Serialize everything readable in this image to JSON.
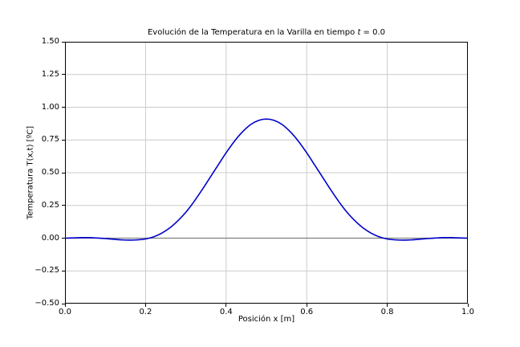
{
  "figure": {
    "title_prefix": "Evolución de la Temperatura en la Varilla en tiempo ",
    "title_var": "t",
    "title_suffix": " = 0.0",
    "xlabel": "Posición x [m]",
    "ylabel": "Temperatura T(x,t) [ºC]"
  },
  "chart_data": {
    "type": "line",
    "title": "Evolución de la Temperatura en la Varilla en tiempo t = 0.0",
    "xlabel": "Posición x [m]",
    "ylabel": "Temperatura T(x,t) [ºC]",
    "xlim": [
      0.0,
      1.0
    ],
    "ylim": [
      -0.5,
      1.5
    ],
    "grid": true,
    "legend": "none",
    "xticks": [
      {
        "value": 0.0,
        "label": "0.0"
      },
      {
        "value": 0.2,
        "label": "0.2"
      },
      {
        "value": 0.4,
        "label": "0.4"
      },
      {
        "value": 0.6,
        "label": "0.6"
      },
      {
        "value": 0.8,
        "label": "0.8"
      },
      {
        "value": 1.0,
        "label": "1.0"
      }
    ],
    "yticks": [
      {
        "value": 1.5,
        "label": "1.50"
      },
      {
        "value": 1.25,
        "label": "1.25"
      },
      {
        "value": 1.0,
        "label": "1.00"
      },
      {
        "value": 0.75,
        "label": "0.75"
      },
      {
        "value": 0.5,
        "label": "0.50"
      },
      {
        "value": 0.25,
        "label": "0.25"
      },
      {
        "value": 0.0,
        "label": "0.00"
      },
      {
        "value": -0.25,
        "label": "−0.25"
      },
      {
        "value": -0.5,
        "label": "−0.50"
      }
    ],
    "style": {
      "grid_color": "#cccccc",
      "spine_color": "#000000",
      "background": "#ffffff",
      "tick_color": "#000000"
    },
    "series": [
      {
        "name": "zero-reference-line",
        "color": "#808080",
        "width": 1.3,
        "smooth": false,
        "x": [
          0.0,
          1.0
        ],
        "y": [
          0.0,
          0.0
        ]
      },
      {
        "name": "temperature-profile",
        "color": "#0000cc",
        "width": 1.6,
        "smooth": true,
        "x": [
          0.0,
          0.02,
          0.04,
          0.06,
          0.08,
          0.1,
          0.12,
          0.14,
          0.16,
          0.18,
          0.2,
          0.22,
          0.24,
          0.26,
          0.28,
          0.3,
          0.32,
          0.34,
          0.36,
          0.38,
          0.4,
          0.42,
          0.44,
          0.46,
          0.48,
          0.5,
          0.52,
          0.54,
          0.56,
          0.58,
          0.6,
          0.62,
          0.64,
          0.66,
          0.68,
          0.7,
          0.72,
          0.74,
          0.76,
          0.78,
          0.8,
          0.82,
          0.84,
          0.86,
          0.88,
          0.9,
          0.92,
          0.94,
          0.96,
          0.98,
          1.0
        ],
        "y": [
          0.0,
          0.002,
          0.004,
          0.004,
          0.001,
          -0.003,
          -0.008,
          -0.013,
          -0.015,
          -0.013,
          -0.006,
          0.01,
          0.038,
          0.078,
          0.132,
          0.198,
          0.278,
          0.368,
          0.463,
          0.558,
          0.652,
          0.738,
          0.81,
          0.866,
          0.899,
          0.91,
          0.899,
          0.866,
          0.81,
          0.738,
          0.652,
          0.558,
          0.463,
          0.368,
          0.278,
          0.198,
          0.132,
          0.078,
          0.038,
          0.01,
          -0.006,
          -0.013,
          -0.015,
          -0.013,
          -0.008,
          -0.003,
          0.001,
          0.004,
          0.004,
          0.002,
          0.0
        ]
      }
    ]
  }
}
